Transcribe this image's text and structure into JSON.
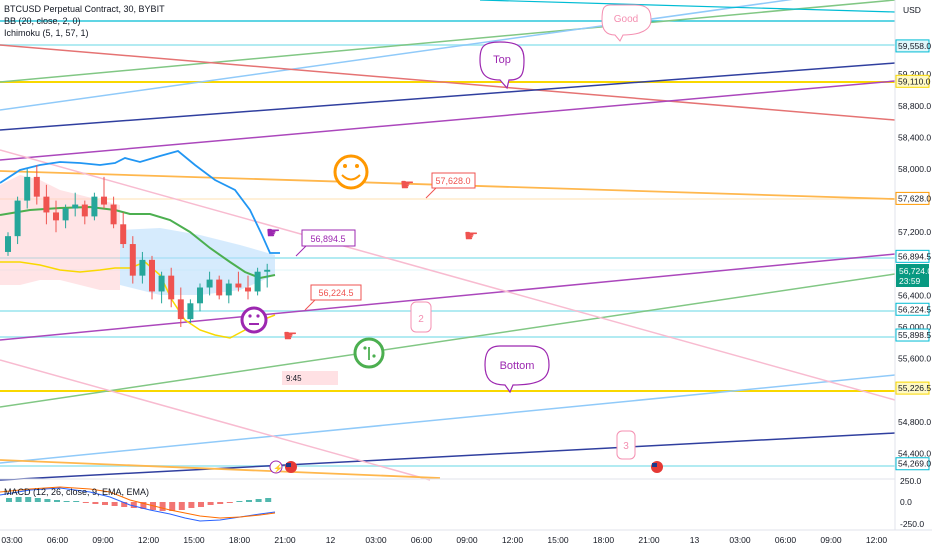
{
  "symbol": {
    "title": "BTCUSD Perpetual Contract, 30, BYBIT",
    "indicators": [
      "BB (20, close, 2, 0)",
      "Ichimoku (5, 1, 57, 1)"
    ],
    "currency": "USD"
  },
  "macd": {
    "label": "MACD (12, 26, close, 9, EMA, EMA)",
    "scale": [
      "250.0",
      "0.0",
      "-250.0"
    ]
  },
  "price_axis": {
    "ticks": [
      "59,200.0",
      "58,800.0",
      "58,400.0",
      "58,000.0",
      "57,200.0",
      "56,400.0",
      "56,000.0",
      "55,600.0",
      "54,800.0",
      "54,400.0"
    ],
    "current_price": "56,724.0",
    "countdown": "23:59"
  },
  "price_tags": [
    {
      "text": "59,558.0",
      "color": "#00bcd4",
      "bg": "#e0f7fa"
    },
    {
      "text": "59,110.0",
      "color": "#f9d800",
      "bg": "#fff9c4"
    },
    {
      "text": "57,628.0",
      "color": "#ff9800",
      "bg": "#ffffff"
    },
    {
      "text": "56,894.5",
      "color": "#00bcd4",
      "bg": "#ffffff"
    },
    {
      "text": "56,224.5",
      "color": "#00bcd4",
      "bg": "#ffffff"
    },
    {
      "text": "55,898.5",
      "color": "#00bcd4",
      "bg": "#ffffff"
    },
    {
      "text": "55,226.5",
      "color": "#f9d800",
      "bg": "#fff9c4"
    },
    {
      "text": "54,269.0",
      "color": "#00bcd4",
      "bg": "#ffffff"
    }
  ],
  "time_axis": [
    "03:00",
    "06:00",
    "09:00",
    "12:00",
    "15:00",
    "18:00",
    "21:00",
    "12",
    "03:00",
    "06:00",
    "09:00",
    "12:00",
    "15:00",
    "18:00",
    "21:00",
    "13",
    "03:00",
    "06:00",
    "09:00",
    "12:00"
  ],
  "annotations": {
    "callout_top": "Top",
    "callout_bottom": "Bottom",
    "callout_good": "Good",
    "note_2": "2",
    "note_3": "3",
    "price_note_1": "57,628.0",
    "price_note_2": "56,894.5",
    "price_note_3": "56,224.5",
    "time_box": "9:45"
  },
  "colors": {
    "up": "#26a69a",
    "down": "#ef5350",
    "bb_line": "#2196f3",
    "ichimoku_green": "#4caf50",
    "ichimoku_yellow": "#f9d800",
    "purple": "#9c27b0",
    "orange": "#ff9800",
    "cyan": "#00bcd4",
    "navy": "#303f9f",
    "lightblue": "#90caf9",
    "pink": "#f8bbd0",
    "red": "#e57373"
  },
  "chart_data": {
    "type": "candlestick",
    "series": [
      {
        "values": [
          [
            56950,
            57200,
            56900,
            57150
          ],
          [
            57150,
            57650,
            57050,
            57600
          ],
          [
            57600,
            58000,
            57500,
            57900
          ],
          [
            57900,
            58050,
            57550,
            57650
          ],
          [
            57650,
            57800,
            57300,
            57450
          ],
          [
            57450,
            57600,
            57200,
            57350
          ],
          [
            57350,
            57550,
            57250,
            57500
          ],
          [
            57500,
            57700,
            57400,
            57550
          ],
          [
            57550,
            57600,
            57300,
            57400
          ],
          [
            57400,
            57700,
            57350,
            57650
          ],
          [
            57650,
            57900,
            57500,
            57550
          ],
          [
            57550,
            57650,
            57250,
            57300
          ],
          [
            57300,
            57450,
            57000,
            57050
          ],
          [
            57050,
            57150,
            56550,
            56650
          ],
          [
            56650,
            56950,
            56550,
            56850
          ],
          [
            56850,
            56900,
            56350,
            56450
          ],
          [
            56450,
            56700,
            56300,
            56650
          ],
          [
            56650,
            56750,
            56250,
            56350
          ],
          [
            56350,
            56500,
            56000,
            56100
          ],
          [
            56100,
            56350,
            56050,
            56300
          ],
          [
            56300,
            56550,
            56200,
            56500
          ],
          [
            56500,
            56700,
            56400,
            56600
          ],
          [
            56600,
            56650,
            56350,
            56400
          ],
          [
            56400,
            56600,
            56300,
            56550
          ],
          [
            56550,
            56700,
            56450,
            56500
          ],
          [
            56500,
            56650,
            56350,
            56450
          ],
          [
            56450,
            56750,
            56400,
            56700
          ],
          [
            56700,
            56800,
            56500,
            56724
          ]
        ]
      }
    ]
  }
}
